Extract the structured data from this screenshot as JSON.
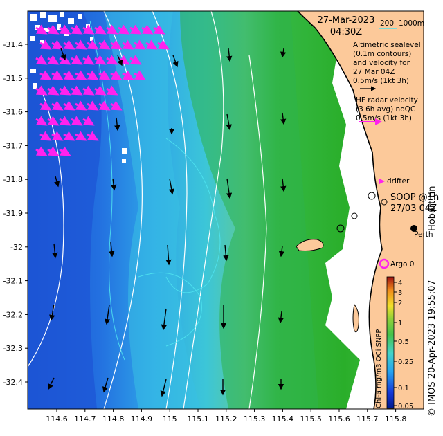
{
  "header": {
    "date": "27-Mar-2023",
    "time": "04:30Z",
    "scale_200": "200",
    "scale_1000": "1000m"
  },
  "legend": {
    "altimetric_1": "Altimetric sealevel",
    "altimetric_2": "(0.1m contours)",
    "altimetric_3": "and velocity for",
    "altimetric_4": "27 Mar 04Z",
    "altimetric_5": "0.5m/s (1kt 3h)",
    "hf_1": "HF radar velocity",
    "hf_2": "(3 6h avg) noQC",
    "hf_3": "0.5m/s (1kt 3h)",
    "drifter": "drifter",
    "soop_1": "SOOP @1h",
    "soop_2": "27/03 04Z",
    "hobart": "Hobart tin",
    "perth": "Perth",
    "argo": "Argo 0"
  },
  "colorbar": {
    "title": "Chl-a mg/m3 OCi SNPP",
    "ticks": [
      "0.05",
      "0.1",
      "0.25",
      "0.5",
      "1",
      "2",
      "3",
      "4"
    ]
  },
  "credit": "© IMOS 20-Apr-2023 19:55:07",
  "axes": {
    "x_ticks": [
      "114.6",
      "114.7",
      "114.8",
      "114.9",
      "115",
      "115.1",
      "115.2",
      "115.3",
      "115.4",
      "115.5",
      "115.6",
      "115.7",
      "115.8"
    ],
    "y_ticks": [
      "-31.4",
      "-31.5",
      "-31.6",
      "-31.7",
      "-31.8",
      "-31.9",
      "-32",
      "-32.1",
      "-32.2",
      "-32.3",
      "-32.4"
    ]
  },
  "colors": {
    "land": "#fcc99a",
    "deep_blue": "#1f5fd6",
    "mid_cyan": "#33b8e6",
    "green": "#2fb82f",
    "contour": "#ffffff",
    "contour_cyan": "#4fe3f0",
    "hf_arrow": "#ff22ee",
    "arrow": "#000000"
  }
}
